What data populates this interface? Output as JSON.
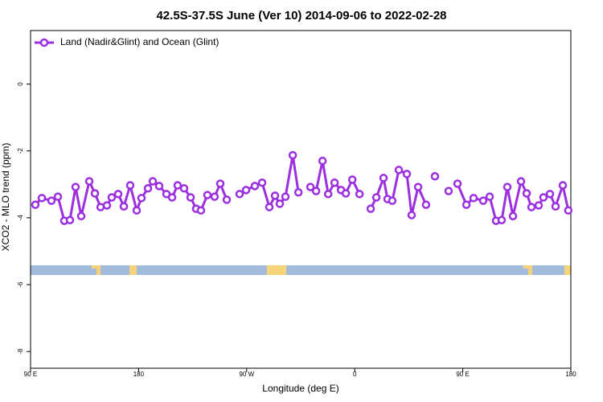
{
  "chart_data": {
    "type": "line",
    "title": "42.5S-37.5S June (Ver 10)   2014-09-06 to 2022-02-28",
    "xlabel": "Longitude (deg E)",
    "ylabel": "XCO2 - MLO trend (ppm)",
    "xlim": [
      90,
      540
    ],
    "xticks": [
      {
        "value": 90,
        "label": "90 E"
      },
      180,
      {
        "value": 270,
        "label": "90 W"
      },
      {
        "value": 360,
        "label": "0"
      },
      {
        "value": 450,
        "label": "90 E"
      },
      {
        "value": 540,
        "label": "180"
      }
    ],
    "ylim": [
      -8.5,
      1.6
    ],
    "yticks": [
      0,
      -2,
      -4,
      -6,
      -8
    ],
    "legend": "top-left",
    "x": [
      94,
      99.4,
      107.4,
      112.8,
      118.1,
      122.8,
      127.5,
      132.2,
      138.9,
      143.6,
      148.3,
      153.6,
      157.6,
      163,
      167.7,
      173,
      178.4,
      182.4,
      187.8,
      191.8,
      197.1,
      203.2,
      207.9,
      212.5,
      217.9,
      223.3,
      227.9,
      231.9,
      237.3,
      243.3,
      248,
      253.4,
      null,
      264.1,
      269.5,
      276.8,
      282.9,
      288.9,
      293.6,
      297.6,
      302.3,
      308.4,
      313.1,
      null,
      323.1,
      327.8,
      333.2,
      337.9,
      343.2,
      348.6,
      352.6,
      358,
      364,
      null,
      373.3,
      378,
      384,
      387.3,
      391.3,
      396.7,
      403.4,
      407.4,
      412.8,
      419.4,
      null,
      426.8,
      null,
      438.2,
      null,
      445.6,
      453,
      459,
      467,
      472.4,
      477.7,
      482.4,
      487.1,
      491.8,
      498.5,
      503.2,
      507.2,
      513.2,
      517.2,
      522.6,
      527.3,
      533.3,
      537.9
    ],
    "series": [
      {
        "name": "Land (Nadir&Glint) and Ocean (Glint)",
        "color": "#9b30e0",
        "values": [
          -3.61,
          -3.41,
          -3.49,
          -3.37,
          -4.09,
          -4.07,
          -3.08,
          -3.95,
          -2.91,
          -3.27,
          -3.68,
          -3.63,
          -3.39,
          -3.29,
          -3.66,
          -3.03,
          -3.78,
          -3.41,
          -3.12,
          -2.91,
          -3.05,
          -3.29,
          -3.39,
          -3.03,
          -3.12,
          -3.39,
          -3.73,
          -3.78,
          -3.32,
          -3.37,
          -2.98,
          -3.46,
          null,
          -3.29,
          -3.17,
          -3.05,
          -2.95,
          -3.68,
          -3.34,
          -3.58,
          -3.37,
          -2.13,
          -3.24,
          null,
          -3.08,
          -3.2,
          -2.3,
          -3.29,
          -2.95,
          -3.17,
          -3.27,
          -2.86,
          -3.29,
          null,
          -3.73,
          -3.39,
          -2.81,
          -3.44,
          -3.49,
          -2.57,
          -2.69,
          -3.92,
          -3.08,
          -3.61,
          null,
          -2.76,
          null,
          -3.2,
          null,
          -2.98,
          -3.61,
          -3.41,
          -3.49,
          -3.37,
          -4.09,
          -4.07,
          -3.08,
          -3.95,
          -2.91,
          -3.27,
          -3.68,
          -3.63,
          -3.39,
          -3.29,
          -3.66,
          -3.03,
          -3.78
        ]
      }
    ]
  }
}
